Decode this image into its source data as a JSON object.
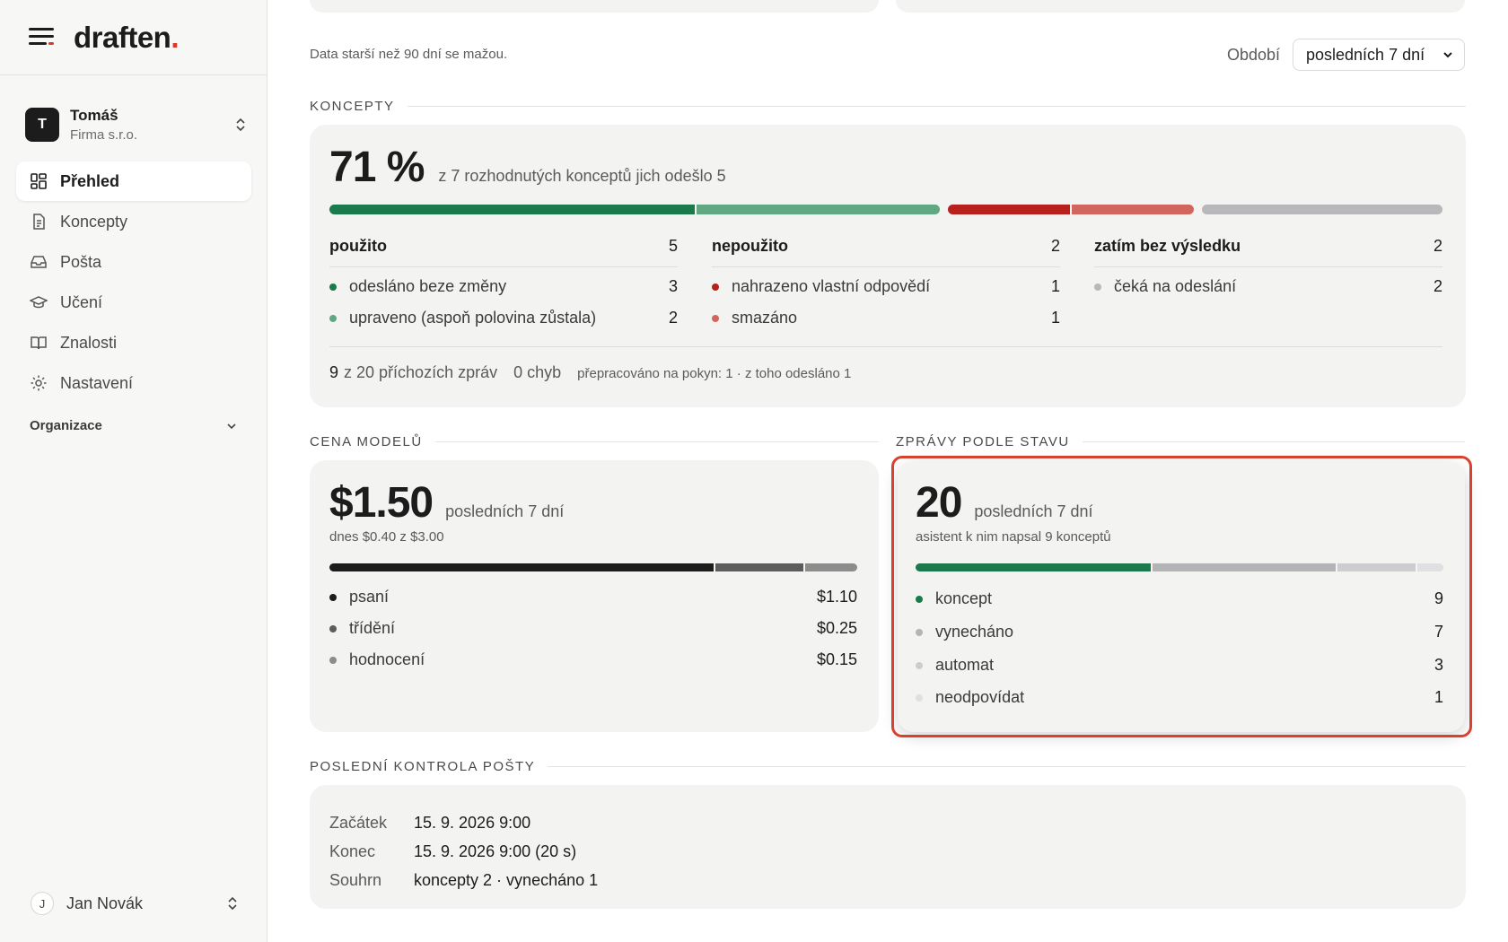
{
  "brand": {
    "name": "draften",
    "dot": "."
  },
  "account": {
    "initial": "T",
    "name": "Tomáš",
    "org": "Firma s.r.o."
  },
  "nav": [
    {
      "label": "Přehled",
      "icon": "dashboard-icon",
      "active": true
    },
    {
      "label": "Koncepty",
      "icon": "document-icon"
    },
    {
      "label": "Pošta",
      "icon": "inbox-icon"
    },
    {
      "label": "Učení",
      "icon": "graduation-cap-icon"
    },
    {
      "label": "Znalosti",
      "icon": "book-icon"
    },
    {
      "label": "Nastavení",
      "icon": "gear-icon"
    }
  ],
  "org_section": {
    "label": "Organizace"
  },
  "user": {
    "initial": "J",
    "name": "Jan Novák"
  },
  "header": {
    "info": "Data starší než 90 dní se mažou.",
    "period_label": "Období",
    "period_value": "posledních 7 dní"
  },
  "concepts": {
    "section_title": "KONCEPTY",
    "percent": "71 %",
    "summary": "z 7 rozhodnutých konceptů jich odešlo 5",
    "groups": [
      {
        "title": "použito",
        "count": "5",
        "items": [
          {
            "label": "odesláno beze změny",
            "value": "3",
            "color": "#1a7a4c"
          },
          {
            "label": "upraveno (aspoň polovina zůstala)",
            "value": "2",
            "color": "#5fa882"
          }
        ]
      },
      {
        "title": "nepoužito",
        "count": "2",
        "items": [
          {
            "label": "nahrazeno vlastní odpovědí",
            "value": "1",
            "color": "#b8201c"
          },
          {
            "label": "smazáno",
            "value": "1",
            "color": "#d2665f"
          }
        ]
      },
      {
        "title": "zatím bez výsledku",
        "count": "2",
        "items": [
          {
            "label": "čeká na odeslání",
            "value": "2",
            "color": "#b8b8bb"
          }
        ]
      }
    ],
    "footer": {
      "incoming_num": "9",
      "incoming_text": "z 20 příchozích zpráv",
      "errors": "0 chyb",
      "reworked": "přepracováno na pokyn: 1 · z toho odesláno 1"
    }
  },
  "model_cost": {
    "section_title": "CENA MODELŮ",
    "amount": "$1.50",
    "period": "posledních 7 dní",
    "today": "dnes $0.40 z $3.00",
    "items": [
      {
        "label": "psaní",
        "value": "$1.10",
        "color": "#1c1c1c",
        "amount": 1.1
      },
      {
        "label": "třídění",
        "value": "$0.25",
        "color": "#5c5c5c",
        "amount": 0.25
      },
      {
        "label": "hodnocení",
        "value": "$0.15",
        "color": "#8c8c8c",
        "amount": 0.15
      }
    ]
  },
  "messages": {
    "section_title": "ZPRÁVY PODLE STAVU",
    "count": "20",
    "period": "posledních 7 dní",
    "sub": "asistent k nim napsal 9 konceptů",
    "items": [
      {
        "label": "koncept",
        "value": "9",
        "color": "#1a7a4c"
      },
      {
        "label": "vynecháno",
        "value": "7",
        "color": "#b4b4b7"
      },
      {
        "label": "automat",
        "value": "3",
        "color": "#cdcdcf"
      },
      {
        "label": "neodpovídat",
        "value": "1",
        "color": "#e0e0e2"
      }
    ]
  },
  "last_check": {
    "section_title": "POSLEDNÍ KONTROLA POŠTY",
    "rows": [
      {
        "label": "Začátek",
        "value": "15. 9. 2026 9:00"
      },
      {
        "label": "Konec",
        "value": "15. 9. 2026 9:00 (20 s)"
      },
      {
        "label": "Souhrn",
        "value": "koncepty 2 · vynecháno 1"
      }
    ]
  },
  "colors": {
    "accent": "#1a7a4c",
    "danger": "#b8201c",
    "highlight": "#d9412f"
  }
}
